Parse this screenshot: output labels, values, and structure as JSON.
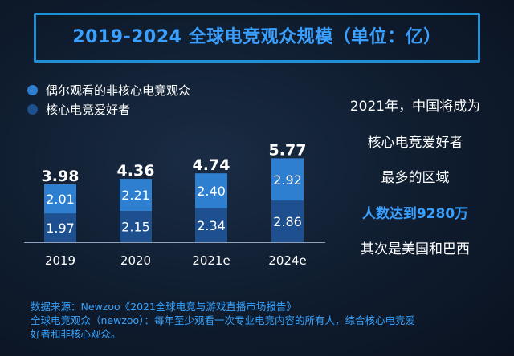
{
  "title": "2019-2024 全球电竞观众规模（单位：亿）",
  "legend": {
    "casual": "偶尔观看的非核心电竞观众",
    "core": "核心电竞爱好者"
  },
  "colors": {
    "casual": "#2f7fd0",
    "core": "#1e4f8e",
    "accent": "#3aa0ff"
  },
  "chart_data": {
    "type": "bar",
    "stacked": true,
    "title": "2019-2024 全球电竞观众规模（单位：亿）",
    "categories": [
      "2019",
      "2020",
      "2021e",
      "2024e"
    ],
    "series": [
      {
        "name": "核心电竞爱好者",
        "values": [
          1.97,
          2.15,
          2.34,
          2.86
        ]
      },
      {
        "name": "偶尔观看的非核心电竞观众",
        "values": [
          2.01,
          2.21,
          2.4,
          2.92
        ]
      }
    ],
    "totals": [
      "3.98",
      "4.36",
      "4.74",
      "5.77"
    ],
    "labels": {
      "core": [
        "1.97",
        "2.15",
        "2.34",
        "2.86"
      ],
      "casual": [
        "2.01",
        "2.21",
        "2.40",
        "2.92"
      ]
    },
    "legend_position": "top-left",
    "grid": false
  },
  "right_text": {
    "line1": "2021年，中国将成为",
    "line2": "核心电竞爱好者",
    "line3": "最多的区域",
    "line4": "人数达到9280万",
    "line5": "其次是美国和巴西"
  },
  "footer": {
    "line1": "数据来源：Newzoo《2021全球电竞与游戏直播市场报告》",
    "line2": "全球电竞观众（newzoo）：每年至少观看一次专业电竞内容的所有人，综合核心电竞爱",
    "line3": "好者和非核心观众。"
  }
}
